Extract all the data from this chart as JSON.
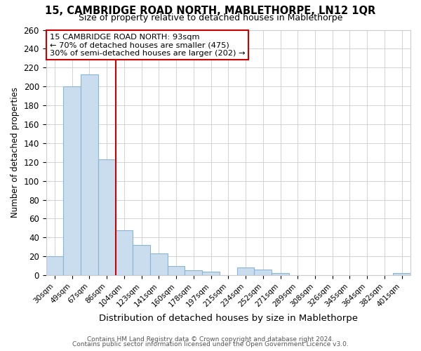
{
  "title": "15, CAMBRIDGE ROAD NORTH, MABLETHORPE, LN12 1QR",
  "subtitle": "Size of property relative to detached houses in Mablethorpe",
  "xlabel": "Distribution of detached houses by size in Mablethorpe",
  "ylabel": "Number of detached properties",
  "bar_labels": [
    "30sqm",
    "49sqm",
    "67sqm",
    "86sqm",
    "104sqm",
    "123sqm",
    "141sqm",
    "160sqm",
    "178sqm",
    "197sqm",
    "215sqm",
    "234sqm",
    "252sqm",
    "271sqm",
    "289sqm",
    "308sqm",
    "326sqm",
    "345sqm",
    "364sqm",
    "382sqm",
    "401sqm"
  ],
  "bar_values": [
    20,
    200,
    213,
    123,
    48,
    32,
    23,
    10,
    5,
    4,
    0,
    8,
    6,
    2,
    0,
    0,
    0,
    0,
    0,
    0,
    2
  ],
  "bar_color": "#c9ddef",
  "bar_edge_color": "#8ab4d4",
  "vline_x": 3.5,
  "vline_color": "#cc0000",
  "annotation_line1": "15 CAMBRIDGE ROAD NORTH: 93sqm",
  "annotation_line2": "← 70% of detached houses are smaller (475)",
  "annotation_line3": "30% of semi-detached houses are larger (202) →",
  "annotation_box_color": "white",
  "annotation_box_edge": "#cc0000",
  "ylim": [
    0,
    260
  ],
  "yticks": [
    0,
    20,
    40,
    60,
    80,
    100,
    120,
    140,
    160,
    180,
    200,
    220,
    240,
    260
  ],
  "footer1": "Contains HM Land Registry data © Crown copyright and database right 2024.",
  "footer2": "Contains public sector information licensed under the Open Government Licence v3.0.",
  "bg_color": "#ffffff",
  "grid_color": "#cccccc"
}
